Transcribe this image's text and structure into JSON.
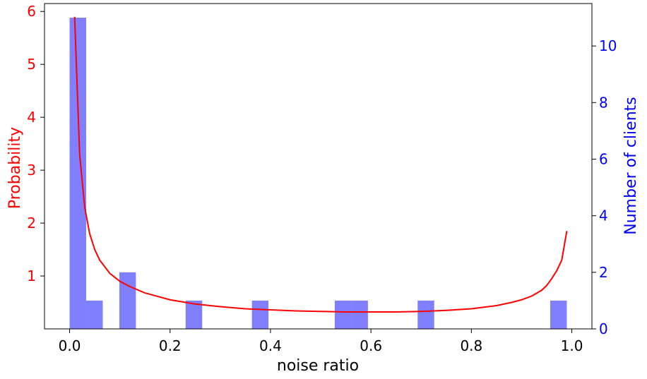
{
  "chart_data": {
    "type": "bar+line",
    "title": "",
    "xlabel": "noise ratio",
    "ylabel_left": "Probability",
    "ylabel_right": "Number of clients",
    "xlim": [
      -0.05,
      1.04
    ],
    "ylim_left": [
      0.0,
      6.15
    ],
    "ylim_right": [
      0,
      11.5
    ],
    "x_ticks": [
      0.0,
      0.2,
      0.4,
      0.6,
      0.8,
      1.0
    ],
    "x_tick_labels": [
      "0.0",
      "0.2",
      "0.4",
      "0.6",
      "0.8",
      "1.0"
    ],
    "y_left_ticks": [
      1,
      2,
      3,
      4,
      5,
      6
    ],
    "y_left_tick_labels": [
      "1",
      "2",
      "3",
      "4",
      "5",
      "6"
    ],
    "y_right_ticks": [
      0,
      2,
      4,
      6,
      8,
      10
    ],
    "y_right_tick_labels": [
      "0",
      "2",
      "4",
      "6",
      "8",
      "10"
    ],
    "histogram": {
      "name": "Number of clients",
      "color": "#8080ff",
      "bin_width": 0.033,
      "bins": [
        {
          "x0": 0.0,
          "count": 11
        },
        {
          "x0": 0.033,
          "count": 1
        },
        {
          "x0": 0.099,
          "count": 2
        },
        {
          "x0": 0.231,
          "count": 1
        },
        {
          "x0": 0.363,
          "count": 1
        },
        {
          "x0": 0.528,
          "count": 1
        },
        {
          "x0": 0.561,
          "count": 1
        },
        {
          "x0": 0.693,
          "count": 1
        },
        {
          "x0": 0.957,
          "count": 1
        }
      ]
    },
    "curve": {
      "name": "Probability",
      "color": "#ff0000",
      "x": [
        0.01,
        0.02,
        0.03,
        0.04,
        0.05,
        0.06,
        0.08,
        0.1,
        0.12,
        0.15,
        0.2,
        0.25,
        0.3,
        0.35,
        0.4,
        0.45,
        0.5,
        0.55,
        0.6,
        0.65,
        0.7,
        0.75,
        0.8,
        0.85,
        0.88,
        0.9,
        0.92,
        0.94,
        0.95,
        0.96,
        0.97,
        0.98,
        0.99
      ],
      "y": [
        5.9,
        3.3,
        2.3,
        1.8,
        1.5,
        1.3,
        1.05,
        0.9,
        0.8,
        0.68,
        0.55,
        0.47,
        0.42,
        0.38,
        0.36,
        0.34,
        0.33,
        0.32,
        0.32,
        0.32,
        0.33,
        0.35,
        0.38,
        0.44,
        0.5,
        0.55,
        0.62,
        0.73,
        0.82,
        0.95,
        1.1,
        1.3,
        1.85
      ]
    }
  }
}
